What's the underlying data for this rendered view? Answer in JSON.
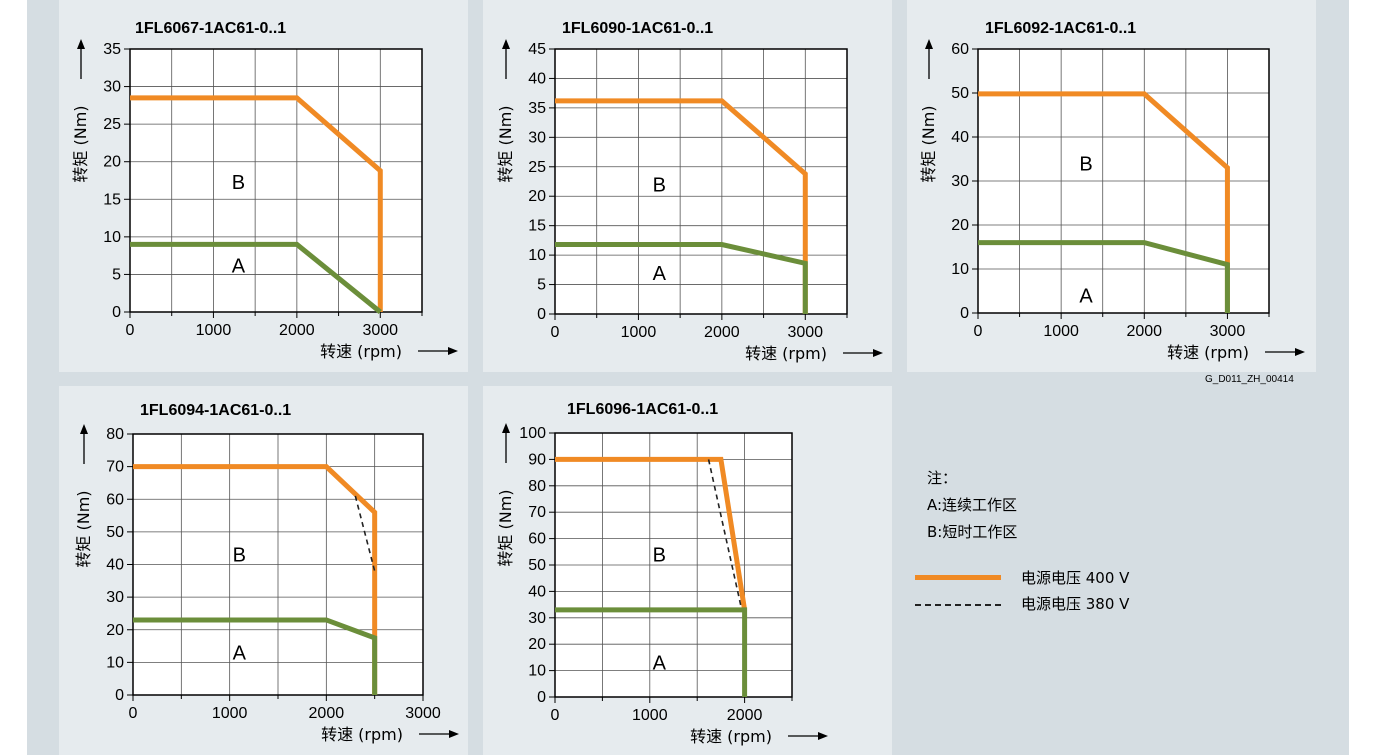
{
  "colors": {
    "page_bg": "#d5dde2",
    "panel_bg": "#e6ebee",
    "line_400V": "#f08a24",
    "line_380V": "#222222",
    "region_A": "#6b8e3a"
  },
  "figure_code": "G_D011_ZH_00414",
  "notes": {
    "header": "注：",
    "a": "A:连续工作区",
    "b": "B:短时工作区"
  },
  "legend": {
    "v400": "电源电压 400 V",
    "v380": "电源电压 380 V"
  },
  "chart_data": [
    {
      "type": "line",
      "title": "1FL6067-1AC61-0..1",
      "xlabel": "转速 (rpm)",
      "ylabel": "转矩 (Nm)",
      "xlim": [
        0,
        3500
      ],
      "ylim": [
        0,
        35
      ],
      "xticks": [
        0,
        1000,
        2000,
        3000
      ],
      "yticks": [
        0,
        5,
        10,
        15,
        20,
        25,
        30,
        35
      ],
      "grid": true,
      "region_labels": [
        {
          "text": "B",
          "x": 1300,
          "y": 17.3
        },
        {
          "text": "A",
          "x": 1300,
          "y": 6.2
        }
      ],
      "series": [
        {
          "name": "B 400 V",
          "role": "b400",
          "points": [
            [
              0,
              28.5
            ],
            [
              2000,
              28.5
            ],
            [
              3000,
              18.8
            ],
            [
              3000,
              0
            ]
          ]
        },
        {
          "name": "A",
          "role": "a",
          "points": [
            [
              0,
              9
            ],
            [
              2000,
              9
            ],
            [
              3000,
              0
            ]
          ]
        }
      ]
    },
    {
      "type": "line",
      "title": "1FL6090-1AC61-0..1",
      "xlabel": "转速 (rpm)",
      "ylabel": "转矩 (Nm)",
      "xlim": [
        0,
        3500
      ],
      "ylim": [
        0,
        45
      ],
      "xticks": [
        0,
        1000,
        2000,
        3000
      ],
      "yticks": [
        0,
        5,
        10,
        15,
        20,
        25,
        30,
        35,
        40,
        45
      ],
      "grid": true,
      "region_labels": [
        {
          "text": "B",
          "x": 1250,
          "y": 22
        },
        {
          "text": "A",
          "x": 1250,
          "y": 7
        }
      ],
      "series": [
        {
          "name": "B 400 V",
          "role": "b400",
          "points": [
            [
              0,
              36.2
            ],
            [
              2000,
              36.2
            ],
            [
              3000,
              23.8
            ],
            [
              3000,
              0
            ]
          ]
        },
        {
          "name": "A",
          "role": "a",
          "points": [
            [
              0,
              11.8
            ],
            [
              2000,
              11.8
            ],
            [
              3000,
              8.6
            ],
            [
              3000,
              0
            ]
          ]
        }
      ]
    },
    {
      "type": "line",
      "title": "1FL6092-1AC61-0..1",
      "xlabel": "转速 (rpm)",
      "ylabel": "转矩 (Nm)",
      "xlim": [
        0,
        3500
      ],
      "ylim": [
        0,
        60
      ],
      "xticks": [
        0,
        1000,
        2000,
        3000
      ],
      "yticks": [
        0,
        10,
        20,
        30,
        40,
        50,
        60
      ],
      "grid": true,
      "region_labels": [
        {
          "text": "B",
          "x": 1300,
          "y": 34
        },
        {
          "text": "A",
          "x": 1300,
          "y": 4
        }
      ],
      "series": [
        {
          "name": "B 400 V",
          "role": "b400",
          "points": [
            [
              0,
              49.8
            ],
            [
              2000,
              49.8
            ],
            [
              3000,
              33
            ],
            [
              3000,
              0
            ]
          ]
        },
        {
          "name": "A",
          "role": "a",
          "points": [
            [
              0,
              16
            ],
            [
              2000,
              16
            ],
            [
              3000,
              11
            ],
            [
              3000,
              0
            ]
          ]
        }
      ]
    },
    {
      "type": "line",
      "title": "1FL6094-1AC61-0..1",
      "xlabel": "转速 (rpm)",
      "ylabel": "转矩 (Nm)",
      "xlim": [
        0,
        3000
      ],
      "ylim": [
        0,
        80
      ],
      "xticks": [
        0,
        1000,
        2000,
        3000
      ],
      "yticks": [
        0,
        10,
        20,
        30,
        40,
        50,
        60,
        70,
        80
      ],
      "grid": true,
      "region_labels": [
        {
          "text": "B",
          "x": 1100,
          "y": 43
        },
        {
          "text": "A",
          "x": 1100,
          "y": 13
        }
      ],
      "series": [
        {
          "name": "B 400 V",
          "role": "b400",
          "points": [
            [
              0,
              70
            ],
            [
              2000,
              70
            ],
            [
              2500,
              56
            ],
            [
              2500,
              0
            ]
          ]
        },
        {
          "name": "B 380 V",
          "role": "b380",
          "points": [
            [
              2300,
              61
            ],
            [
              2500,
              38
            ]
          ]
        },
        {
          "name": "A",
          "role": "a",
          "points": [
            [
              0,
              23
            ],
            [
              2000,
              23
            ],
            [
              2500,
              17.5
            ],
            [
              2500,
              0
            ]
          ]
        }
      ]
    },
    {
      "type": "line",
      "title": "1FL6096-1AC61-0..1",
      "xlabel": "转速 (rpm)",
      "ylabel": "转矩 (Nm)",
      "xlim": [
        0,
        2500
      ],
      "ylim": [
        0,
        100
      ],
      "xticks": [
        0,
        1000,
        2000
      ],
      "yticks": [
        0,
        10,
        20,
        30,
        40,
        50,
        60,
        70,
        80,
        90,
        100
      ],
      "grid": true,
      "region_labels": [
        {
          "text": "B",
          "x": 1100,
          "y": 54
        },
        {
          "text": "A",
          "x": 1100,
          "y": 13
        }
      ],
      "series": [
        {
          "name": "B 400 V",
          "role": "b400",
          "points": [
            [
              0,
              90
            ],
            [
              1750,
              90
            ],
            [
              2000,
              33
            ]
          ]
        },
        {
          "name": "B 380 V",
          "role": "b380",
          "points": [
            [
              1620,
              90
            ],
            [
              1970,
              33
            ]
          ]
        },
        {
          "name": "A",
          "role": "a",
          "points": [
            [
              0,
              33
            ],
            [
              2000,
              33
            ],
            [
              2000,
              0
            ]
          ]
        }
      ]
    }
  ]
}
